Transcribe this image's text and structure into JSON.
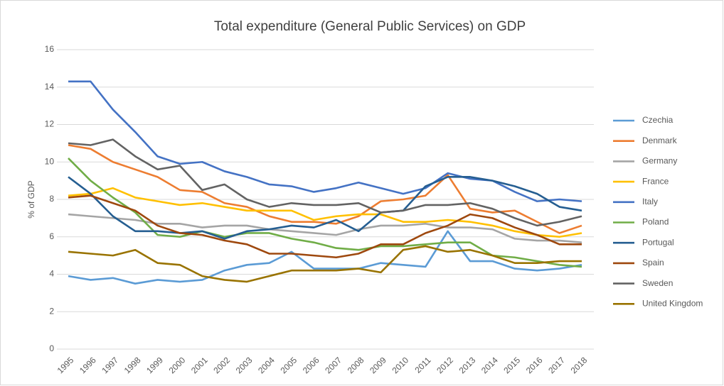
{
  "chart_data": {
    "type": "line",
    "title": "Total expenditure (General Public Services) on GDP",
    "y_label": "% of GDP",
    "categories": [
      "1995",
      "1996",
      "1997",
      "1998",
      "1999",
      "2000",
      "2001",
      "2002",
      "2003",
      "2004",
      "2005",
      "2006",
      "2007",
      "2008",
      "2009",
      "2010",
      "2011",
      "2012",
      "2013",
      "2014",
      "2015",
      "2016",
      "2017",
      "2018"
    ],
    "ylim": [
      0,
      16
    ],
    "yticks": [
      0,
      2,
      4,
      6,
      8,
      10,
      12,
      14,
      16
    ],
    "grid": true,
    "legend": "right",
    "series": [
      {
        "name": "Czechia",
        "color": "#5b9bd5",
        "values": [
          3.9,
          3.7,
          3.8,
          3.5,
          3.7,
          3.6,
          3.7,
          4.2,
          4.5,
          4.6,
          5.2,
          4.3,
          4.3,
          4.3,
          4.6,
          4.5,
          4.4,
          6.3,
          4.7,
          4.7,
          4.3,
          4.2,
          4.3,
          4.5
        ]
      },
      {
        "name": "Denmark",
        "color": "#ed7d31",
        "values": [
          10.9,
          10.7,
          10.0,
          9.6,
          9.2,
          8.5,
          8.4,
          7.8,
          7.6,
          7.1,
          6.8,
          6.8,
          6.7,
          7.1,
          7.9,
          8.0,
          8.2,
          9.3,
          7.5,
          7.3,
          7.4,
          6.8,
          6.2,
          6.6
        ]
      },
      {
        "name": "Germany",
        "color": "#a5a5a5",
        "values": [
          7.2,
          7.1,
          7.0,
          6.9,
          6.7,
          6.7,
          6.5,
          6.6,
          6.6,
          6.4,
          6.3,
          6.2,
          6.1,
          6.4,
          6.6,
          6.6,
          6.7,
          6.5,
          6.5,
          6.4,
          5.9,
          5.8,
          5.8,
          5.7
        ]
      },
      {
        "name": "France",
        "color": "#ffc000",
        "values": [
          8.2,
          8.3,
          8.6,
          8.1,
          7.9,
          7.7,
          7.8,
          7.6,
          7.4,
          7.4,
          7.4,
          6.9,
          7.1,
          7.2,
          7.2,
          6.8,
          6.8,
          6.9,
          6.8,
          6.6,
          6.3,
          6.1,
          6.0,
          6.2
        ]
      },
      {
        "name": "Italy",
        "color": "#4472c4",
        "values": [
          14.3,
          14.3,
          12.8,
          11.6,
          10.3,
          9.9,
          10.0,
          9.5,
          9.2,
          8.8,
          8.7,
          8.4,
          8.6,
          8.9,
          8.6,
          8.3,
          8.6,
          9.4,
          9.1,
          9.0,
          8.4,
          7.9,
          8.0,
          7.9
        ]
      },
      {
        "name": "Poland",
        "color": "#70ad47",
        "values": [
          10.2,
          9.0,
          8.1,
          7.3,
          6.1,
          6.0,
          6.3,
          6.0,
          6.2,
          6.2,
          5.9,
          5.7,
          5.4,
          5.3,
          5.5,
          5.5,
          5.6,
          5.7,
          5.7,
          5.0,
          4.9,
          4.7,
          4.5,
          4.4
        ]
      },
      {
        "name": "Portugal",
        "color": "#255e91",
        "values": [
          9.2,
          8.3,
          7.1,
          6.3,
          6.3,
          6.2,
          6.3,
          5.9,
          6.3,
          6.4,
          6.6,
          6.5,
          6.9,
          6.3,
          7.3,
          7.4,
          8.7,
          9.2,
          9.2,
          9.0,
          8.7,
          8.3,
          7.6,
          7.4
        ]
      },
      {
        "name": "Spain",
        "color": "#9e480e",
        "values": [
          8.1,
          8.2,
          7.8,
          7.4,
          6.6,
          6.2,
          6.1,
          5.8,
          5.6,
          5.1,
          5.1,
          5.0,
          4.9,
          5.1,
          5.6,
          5.6,
          6.2,
          6.6,
          7.2,
          7.0,
          6.5,
          6.1,
          5.6,
          5.6
        ]
      },
      {
        "name": "Sweden",
        "color": "#636363",
        "values": [
          11.0,
          10.9,
          11.2,
          10.3,
          9.6,
          9.8,
          8.5,
          8.8,
          8.0,
          7.6,
          7.8,
          7.7,
          7.7,
          7.8,
          7.3,
          7.4,
          7.7,
          7.7,
          7.8,
          7.5,
          7.0,
          6.6,
          6.8,
          7.1
        ]
      },
      {
        "name": "United Kingdom",
        "color": "#997300",
        "values": [
          5.2,
          5.1,
          5.0,
          5.3,
          4.6,
          4.5,
          3.9,
          3.7,
          3.6,
          3.9,
          4.2,
          4.2,
          4.2,
          4.3,
          4.1,
          5.3,
          5.5,
          5.2,
          5.3,
          5.0,
          4.6,
          4.6,
          4.7,
          4.7
        ]
      }
    ]
  }
}
